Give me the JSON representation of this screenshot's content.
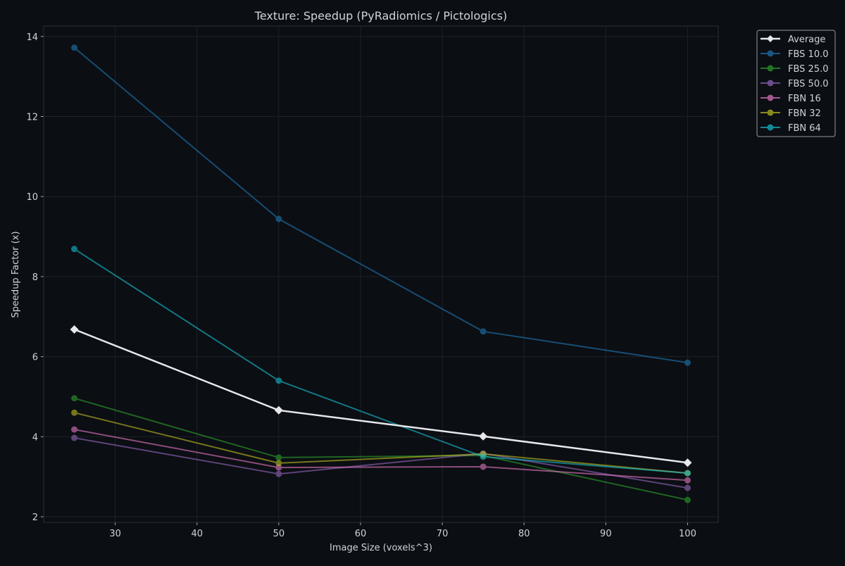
{
  "chart_data": {
    "type": "line",
    "title": "Texture: Speedup (PyRadiomics / Pictologics)",
    "xlabel": "Image Size (voxels^3)",
    "ylabel": "Speedup Factor (x)",
    "xlim": [
      21.25,
      103.75
    ],
    "ylim": [
      1.86,
      14.26
    ],
    "xticks": [
      30,
      40,
      50,
      60,
      70,
      80,
      90,
      100
    ],
    "yticks": [
      2,
      4,
      6,
      8,
      10,
      12,
      14
    ],
    "grid": true,
    "legend": "outside-top-right",
    "x": [
      25,
      50,
      75,
      100
    ],
    "series": [
      {
        "name": "Average",
        "values": [
          6.68,
          4.66,
          4.01,
          3.35
        ],
        "color": "#e6e8ec",
        "marker": "diamond"
      },
      {
        "name": "FBS 10.0",
        "values": [
          13.72,
          9.44,
          6.63,
          5.85
        ],
        "color": "#1f77b4",
        "marker": "circle"
      },
      {
        "name": "FBS 25.0",
        "values": [
          4.96,
          3.48,
          3.53,
          2.42
        ],
        "color": "#2ca02c",
        "marker": "circle"
      },
      {
        "name": "FBS 50.0",
        "values": [
          3.97,
          3.07,
          3.58,
          2.72
        ],
        "color": "#9467bd",
        "marker": "circle"
      },
      {
        "name": "FBN 16",
        "values": [
          4.18,
          3.23,
          3.25,
          2.91
        ],
        "color": "#e377c2",
        "marker": "circle"
      },
      {
        "name": "FBN 32",
        "values": [
          4.6,
          3.34,
          3.57,
          3.09
        ],
        "color": "#bcbd22",
        "marker": "circle"
      },
      {
        "name": "FBN 64",
        "values": [
          8.69,
          5.4,
          3.5,
          3.09
        ],
        "color": "#17becf",
        "marker": "circle"
      }
    ]
  }
}
